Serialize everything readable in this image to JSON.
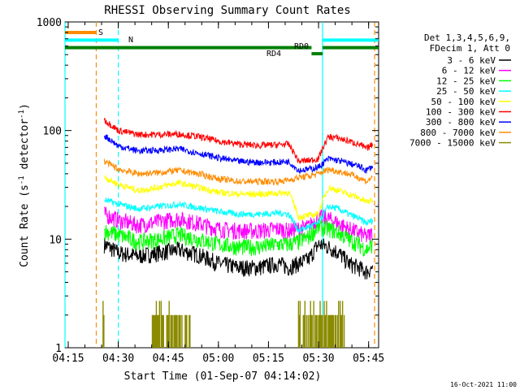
{
  "chart_data": {
    "type": "line",
    "title": "RHESSI Observing Summary Count Rates",
    "xlabel": "Start Time (01-Sep-07 04:14:02)",
    "ylabel_main": "Count Rate (s",
    "ylabel_sup1": "-1",
    "ylabel_mid": " detector",
    "ylabel_sup2": "-1",
    "ylabel_end": ")",
    "footer_date": "16-Oct-2021 11:00",
    "y_scale": "log",
    "ylim": [
      1,
      1000
    ],
    "xlim": [
      4.2339,
      5.8
    ],
    "x_ticks": [
      {
        "label": "04:15",
        "h": 4.25
      },
      {
        "label": "04:30",
        "h": 4.5
      },
      {
        "label": "04:45",
        "h": 4.75
      },
      {
        "label": "05:00",
        "h": 5.0
      },
      {
        "label": "05:15",
        "h": 5.25
      },
      {
        "label": "05:30",
        "h": 5.5
      },
      {
        "label": "05:45",
        "h": 5.75
      }
    ],
    "y_ticks": [
      {
        "label": "1",
        "v": 1
      },
      {
        "label": "10",
        "v": 10
      },
      {
        "label": "100",
        "v": 100
      },
      {
        "label": "1000",
        "v": 1000
      }
    ],
    "legend_header": [
      "Det 1,3,4,5,6,9,",
      "FDecim 1, Att 0"
    ],
    "legend_position": "top-right",
    "series": [
      {
        "name": "3 - 6 keV",
        "color": "#000000",
        "times": [
          4.43,
          4.5,
          4.6,
          4.7,
          4.8,
          4.9,
          5.0,
          5.1,
          5.2,
          5.3,
          5.35,
          5.4,
          5.45,
          5.5,
          5.55,
          5.6,
          5.65,
          5.7,
          5.74,
          5.77
        ],
        "values": [
          9,
          7.5,
          7,
          7.5,
          8,
          7.2,
          6,
          5.5,
          5.5,
          6,
          5.5,
          6,
          6.5,
          9,
          8.5,
          7.5,
          6,
          5.5,
          5,
          5.5
        ]
      },
      {
        "name": "6 - 12 keV",
        "color": "#ff00ff",
        "times": [
          4.43,
          4.5,
          4.6,
          4.7,
          4.8,
          4.9,
          5.0,
          5.1,
          5.2,
          5.3,
          5.35,
          5.4,
          5.45,
          5.5,
          5.55,
          5.6,
          5.65,
          5.7,
          5.74,
          5.77
        ],
        "values": [
          17,
          15,
          13.5,
          14.5,
          15.5,
          14,
          12.5,
          12,
          12,
          12.5,
          12,
          12.5,
          13,
          16,
          15.5,
          14,
          12.5,
          11.5,
          10.5,
          11.5
        ]
      },
      {
        "name": "12 - 25 keV",
        "color": "#00ff00",
        "times": [
          4.43,
          4.5,
          4.6,
          4.7,
          4.8,
          4.9,
          5.0,
          5.1,
          5.2,
          5.3,
          5.35,
          5.4,
          5.45,
          5.5,
          5.55,
          5.6,
          5.65,
          5.7,
          5.74,
          5.77
        ],
        "values": [
          12,
          11,
          9.5,
          10,
          11,
          10,
          9,
          8.5,
          8.5,
          9,
          9,
          9.5,
          10.5,
          13,
          12.5,
          11.5,
          10,
          9,
          8,
          9
        ]
      },
      {
        "name": "25 - 50 keV",
        "color": "#00ffff",
        "times": [
          4.43,
          4.5,
          4.6,
          4.7,
          4.8,
          4.9,
          5.0,
          5.1,
          5.2,
          5.3,
          5.35,
          5.4,
          5.45,
          5.5,
          5.55,
          5.6,
          5.65,
          5.7,
          5.74,
          5.77
        ],
        "values": [
          23,
          21,
          19,
          20,
          21,
          19.5,
          18,
          17,
          17,
          17.5,
          17,
          12,
          13,
          14,
          20,
          19,
          17,
          15.5,
          14,
          15
        ]
      },
      {
        "name": "50 - 100 keV",
        "color": "#ffff00",
        "times": [
          4.43,
          4.5,
          4.6,
          4.7,
          4.8,
          4.9,
          5.0,
          5.1,
          5.2,
          5.3,
          5.35,
          5.4,
          5.45,
          5.5,
          5.55,
          5.6,
          5.65,
          5.7,
          5.74,
          5.77
        ],
        "values": [
          37,
          32,
          28,
          30,
          33,
          30,
          27,
          26,
          26,
          26.5,
          27,
          16,
          16.5,
          17,
          30,
          28,
          26,
          24,
          22,
          23
        ]
      },
      {
        "name": "100 - 300 keV",
        "color": "#ff0000",
        "times": [
          4.43,
          4.5,
          4.6,
          4.7,
          4.8,
          4.9,
          5.0,
          5.1,
          5.2,
          5.3,
          5.35,
          5.4,
          5.45,
          5.5,
          5.55,
          5.6,
          5.65,
          5.7,
          5.74,
          5.77
        ],
        "values": [
          125,
          100,
          92,
          92,
          93,
          88,
          80,
          75,
          73,
          74,
          75,
          52,
          53,
          55,
          88,
          85,
          80,
          75,
          68,
          75
        ]
      },
      {
        "name": "300 - 800 keV",
        "color": "#0000ff",
        "times": [
          4.43,
          4.5,
          4.6,
          4.7,
          4.8,
          4.9,
          5.0,
          5.1,
          5.2,
          5.3,
          5.35,
          5.4,
          5.45,
          5.5,
          5.55,
          5.6,
          5.65,
          5.7,
          5.74,
          5.77
        ],
        "values": [
          90,
          72,
          65,
          66,
          68,
          62,
          56,
          52,
          51,
          51,
          52,
          43,
          44,
          46,
          55,
          53,
          50,
          47,
          43,
          47
        ]
      },
      {
        "name": "800 - 7000 keV",
        "color": "#ff8c00",
        "times": [
          4.43,
          4.5,
          4.6,
          4.7,
          4.8,
          4.9,
          5.0,
          5.1,
          5.2,
          5.3,
          5.35,
          5.4,
          5.45,
          5.5,
          5.55,
          5.6,
          5.65,
          5.7,
          5.74,
          5.77
        ],
        "values": [
          52,
          44,
          40,
          41,
          43,
          40,
          36,
          34,
          34,
          34,
          35,
          37,
          38,
          40,
          44,
          42,
          40,
          37,
          34,
          37
        ]
      },
      {
        "name": "7000 - 15000 keV",
        "color": "#8b8b00",
        "times": [],
        "values": []
      }
    ],
    "attenuator_bars": [
      {
        "label": "S",
        "color": "#ff8c00",
        "start": 4.2339,
        "end": 4.39,
        "v": 800
      },
      {
        "label": "N",
        "color": "#00ffff",
        "start": 4.2339,
        "end": 4.5,
        "v": 680
      },
      {
        "label": "N",
        "color": "#00ffff",
        "start": 5.52,
        "end": 5.8,
        "v": 680
      },
      {
        "label": "RD0",
        "color": "#008000",
        "start": 4.2339,
        "end": 5.465,
        "v": 580
      },
      {
        "label": "RD4",
        "color": "#008000",
        "start": 5.465,
        "end": 5.52,
        "v": 510
      },
      {
        "label": "RD0",
        "color": "#008000",
        "start": 5.52,
        "end": 5.8,
        "v": 580
      }
    ],
    "vertical_lines": [
      {
        "h": 4.2339,
        "color": "#00ffff",
        "style": "solid"
      },
      {
        "h": 4.39,
        "color": "#ff8c00",
        "style": "dashed"
      },
      {
        "h": 4.5,
        "color": "#00ffff",
        "style": "dashed"
      },
      {
        "h": 5.52,
        "color": "#00ffff",
        "style": "solid"
      },
      {
        "h": 5.78,
        "color": "#ff8c00",
        "style": "dashed"
      }
    ],
    "bar_labels": {
      "rd0": "RD0",
      "rd4": "RD4",
      "s": "S",
      "n": "N"
    }
  }
}
